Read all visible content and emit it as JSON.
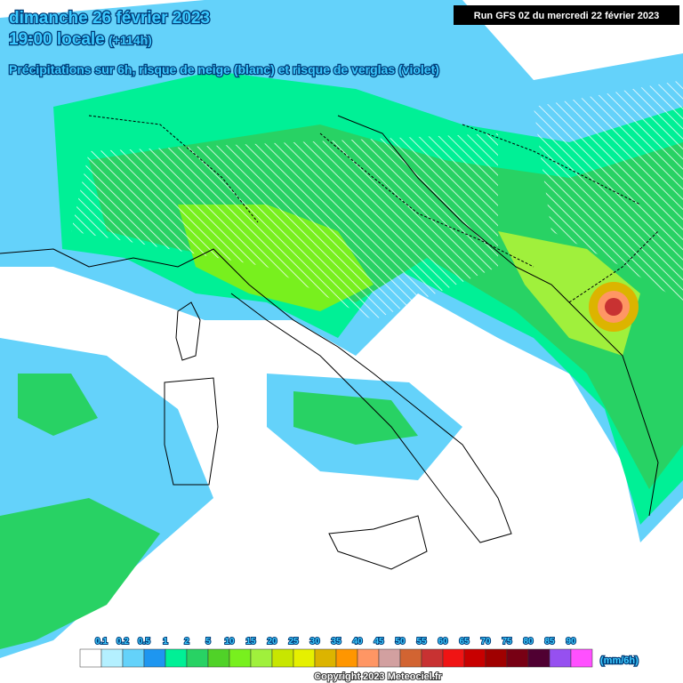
{
  "header": {
    "title": "dimanche 26 février 2023",
    "time": "19:00 locale",
    "lead": "(+114h)",
    "subtitle": "Précipitations sur 6h, risque de neige (blanc) et risque de verglas (violet)",
    "run": "Run GFS 0Z du mercredi 22 février 2023"
  },
  "legend": {
    "labels": [
      "0.1",
      "0.2",
      "0.5",
      "1",
      "2",
      "5",
      "10",
      "15",
      "20",
      "25",
      "30",
      "35",
      "40",
      "45",
      "50",
      "55",
      "60",
      "65",
      "70",
      "75",
      "80",
      "85",
      "90"
    ],
    "colors": [
      "#ffffff",
      "#b4f0ff",
      "#64d2fa",
      "#1e96f0",
      "#00f096",
      "#28d264",
      "#50d228",
      "#78f01e",
      "#a0f03c",
      "#c8e600",
      "#e6f000",
      "#dcb400",
      "#ff9600",
      "#ff9664",
      "#d2a0a0",
      "#d26432",
      "#c83232",
      "#f01414",
      "#c80000",
      "#a00000",
      "#780014",
      "#500032",
      "#9650f0",
      "#ff50ff"
    ],
    "unit": "(mm/6h)"
  },
  "footer": {
    "copyright": "Copyright 2023 Meteociel.fr"
  }
}
